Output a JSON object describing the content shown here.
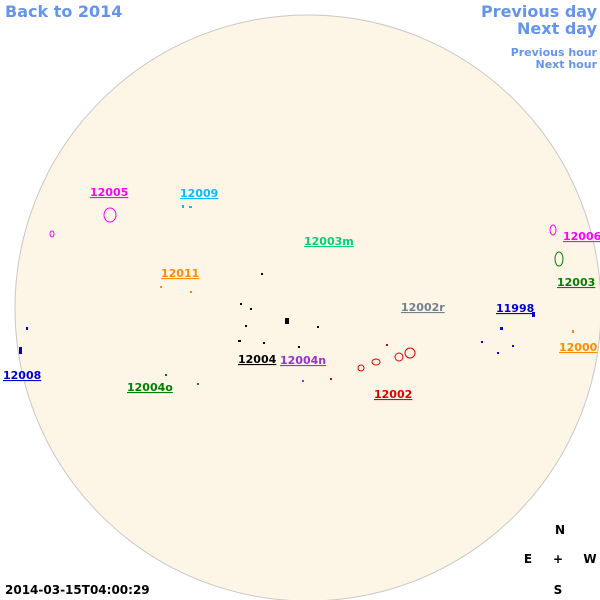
{
  "nav": {
    "back": "Back to 2014",
    "previous_day": "Previous day",
    "next_day": "Next day",
    "previous_hour": "Previous hour",
    "next_hour": "Next hour"
  },
  "regions": [
    {
      "label": "12005",
      "color": "#ff00ff"
    },
    {
      "label": "12009",
      "color": "#00bfff"
    },
    {
      "label": "12003m",
      "color": "#00d27a"
    },
    {
      "label": "12011",
      "color": "#ff8c00"
    },
    {
      "label": "12006",
      "color": "#ff00ff"
    },
    {
      "label": "12003",
      "color": "#008000"
    },
    {
      "label": "12002r",
      "color": "#708090"
    },
    {
      "label": "11998",
      "color": "#0000cd"
    },
    {
      "label": "12000",
      "color": "#ff8c00"
    },
    {
      "label": "12008",
      "color": "#0000cd"
    },
    {
      "label": "12004",
      "color": "#000000"
    },
    {
      "label": "12004n",
      "color": "#9932cc"
    },
    {
      "label": "12004o",
      "color": "#008000"
    },
    {
      "label": "12002",
      "color": "#e00000"
    }
  ],
  "compass": {
    "north": "N",
    "east": "E",
    "center": "+",
    "west": "W",
    "south": "S"
  },
  "timestamp": "2014-03-15T04:00:29"
}
